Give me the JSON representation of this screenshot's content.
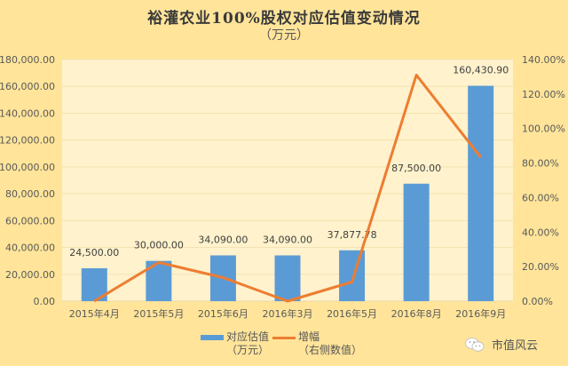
{
  "title": "裕灌农业100%股权对应估值变动情况",
  "subtitle": "（万元）",
  "legend": [
    {
      "label_line1": "对应估值",
      "label_line2": "（万元）",
      "type": "bar"
    },
    {
      "label_line1": "增幅",
      "label_line2": "（右侧数值）",
      "type": "line"
    }
  ],
  "watermark": {
    "icon": "wechat-icon",
    "text": "市值风云"
  },
  "colors": {
    "bar": "#5b9bd5",
    "line": "#ed7d31",
    "background": "#ffe49a",
    "plot_bg": "#fff2cc"
  },
  "chart_data": {
    "type": "bar",
    "title": "裕灌农业100%股权对应估值变动情况",
    "subtitle": "（万元）",
    "categories": [
      "2015年4月",
      "2015年5月",
      "2015年6月",
      "2016年3月",
      "2016年5月",
      "2016年8月",
      "2016年9月"
    ],
    "series": [
      {
        "name": "对应估值（万元）",
        "type": "bar",
        "axis": "left",
        "values": [
          24500.0,
          30000.0,
          34090.0,
          34090.0,
          37877.78,
          87500.0,
          160430.9
        ],
        "data_labels": [
          "24,500.00",
          "30,000.00",
          "34,090.00",
          "34,090.00",
          "37,877.78",
          "87,500.00",
          "160,430.90"
        ]
      },
      {
        "name": "增幅（右侧数值）",
        "type": "line",
        "axis": "right",
        "values": [
          0.0,
          22.45,
          13.63,
          0.0,
          11.11,
          131.0,
          83.35
        ]
      }
    ],
    "left_axis": {
      "ylim": [
        0,
        180000
      ],
      "ticks": [
        "0.00",
        "20,000.00",
        "40,000.00",
        "60,000.00",
        "80,000.00",
        "100,000.00",
        "120,000.00",
        "140,000.00",
        "160,000.00",
        "180,000.00"
      ]
    },
    "right_axis": {
      "ylim": [
        0,
        140
      ],
      "ticks": [
        "0.00%",
        "20.00%",
        "40.00%",
        "60.00%",
        "80.00%",
        "100.00%",
        "120.00%",
        "140.00%"
      ]
    },
    "grid": true,
    "legend_position": "bottom"
  }
}
